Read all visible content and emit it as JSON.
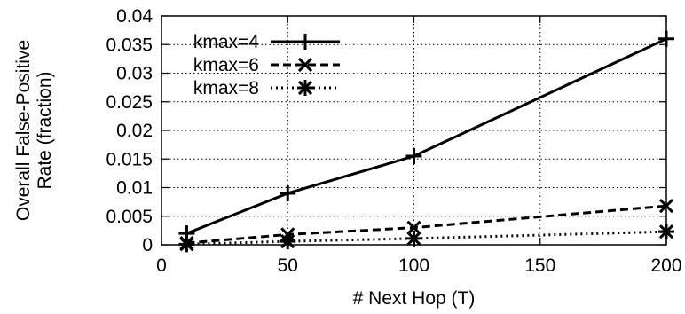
{
  "chart_data": {
    "type": "line",
    "title": "",
    "xlabel": "# Next Hop (T)",
    "ylabel_lines": [
      "Overall False-Positive",
      "Rate (fraction)"
    ],
    "xlim": [
      0,
      200
    ],
    "ylim": [
      0,
      0.04
    ],
    "xticks": [
      "0",
      "50",
      "100",
      "150",
      "200"
    ],
    "yticks": [
      "0",
      "0.005",
      "0.01",
      "0.015",
      "0.02",
      "0.025",
      "0.03",
      "0.035",
      "0.04"
    ],
    "grid": true,
    "legend_position": "top-left",
    "x": [
      10,
      50,
      100,
      200
    ],
    "series": [
      {
        "name": "kmax=4",
        "values": [
          0.002,
          0.009,
          0.0155,
          0.036
        ],
        "line_style": "solid",
        "marker": "plus",
        "color": "#000000"
      },
      {
        "name": "kmax=6",
        "values": [
          0.0003,
          0.0018,
          0.003,
          0.0068
        ],
        "line_style": "dashed",
        "marker": "x",
        "color": "#000000"
      },
      {
        "name": "kmax=8",
        "values": [
          0.0001,
          0.0006,
          0.0011,
          0.0023
        ],
        "line_style": "dotted",
        "marker": "star",
        "color": "#000000"
      }
    ]
  }
}
